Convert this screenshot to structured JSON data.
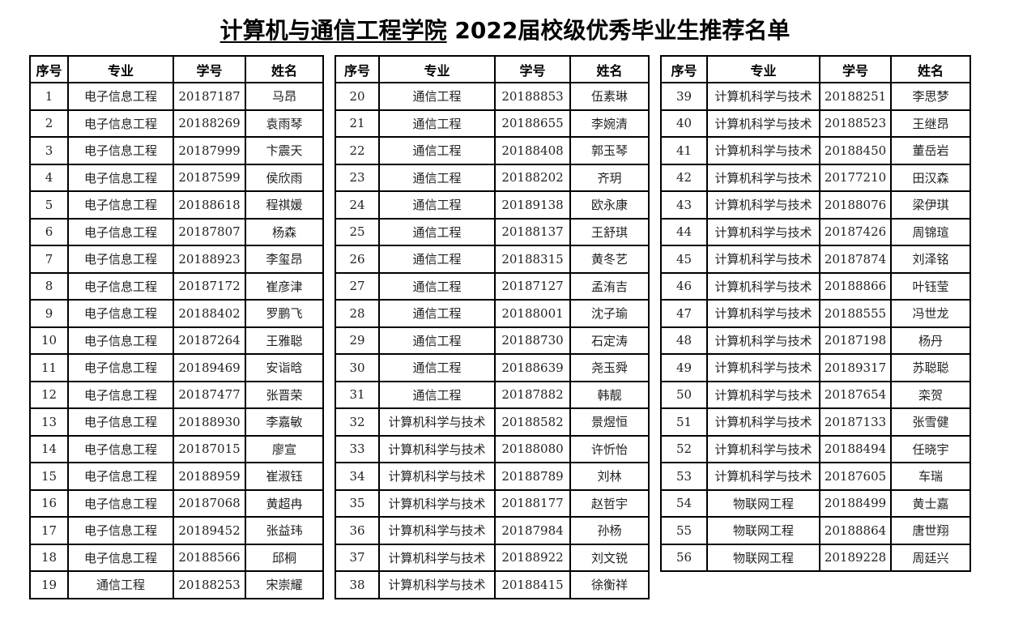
{
  "title": {
    "underlined": "计算机与通信工程学院",
    "rest": " 2022届校级优秀毕业生推荐名单"
  },
  "headers": [
    "序号",
    "专业",
    "学号",
    "姓名"
  ],
  "tables": [
    {
      "rows": [
        [
          "1",
          "电子信息工程",
          "20187187",
          "马昂"
        ],
        [
          "2",
          "电子信息工程",
          "20188269",
          "袁雨琴"
        ],
        [
          "3",
          "电子信息工程",
          "20187999",
          "卞震天"
        ],
        [
          "4",
          "电子信息工程",
          "20187599",
          "侯欣雨"
        ],
        [
          "5",
          "电子信息工程",
          "20188618",
          "程祺媛"
        ],
        [
          "6",
          "电子信息工程",
          "20187807",
          "杨森"
        ],
        [
          "7",
          "电子信息工程",
          "20188923",
          "李玺昂"
        ],
        [
          "8",
          "电子信息工程",
          "20187172",
          "崔彦津"
        ],
        [
          "9",
          "电子信息工程",
          "20188402",
          "罗鹏飞"
        ],
        [
          "10",
          "电子信息工程",
          "20187264",
          "王雅聪"
        ],
        [
          "11",
          "电子信息工程",
          "20189469",
          "安诣晗"
        ],
        [
          "12",
          "电子信息工程",
          "20187477",
          "张晋荣"
        ],
        [
          "13",
          "电子信息工程",
          "20188930",
          "李嘉敏"
        ],
        [
          "14",
          "电子信息工程",
          "20187015",
          "廖宣"
        ],
        [
          "15",
          "电子信息工程",
          "20188959",
          "崔淑钰"
        ],
        [
          "16",
          "电子信息工程",
          "20187068",
          "黄超冉"
        ],
        [
          "17",
          "电子信息工程",
          "20189452",
          "张益玮"
        ],
        [
          "18",
          "电子信息工程",
          "20188566",
          "邱桐"
        ],
        [
          "19",
          "通信工程",
          "20188253",
          "宋崇耀"
        ]
      ]
    },
    {
      "rows": [
        [
          "20",
          "通信工程",
          "20188853",
          "伍素琳"
        ],
        [
          "21",
          "通信工程",
          "20188655",
          "李婉清"
        ],
        [
          "22",
          "通信工程",
          "20188408",
          "郭玉琴"
        ],
        [
          "23",
          "通信工程",
          "20188202",
          "齐玥"
        ],
        [
          "24",
          "通信工程",
          "20189138",
          "欧永康"
        ],
        [
          "25",
          "通信工程",
          "20188137",
          "王舒琪"
        ],
        [
          "26",
          "通信工程",
          "20188315",
          "黄冬艺"
        ],
        [
          "27",
          "通信工程",
          "20187127",
          "孟洧吉"
        ],
        [
          "28",
          "通信工程",
          "20188001",
          "沈子瑜"
        ],
        [
          "29",
          "通信工程",
          "20188730",
          "石定涛"
        ],
        [
          "30",
          "通信工程",
          "20188639",
          "尧玉舜"
        ],
        [
          "31",
          "通信工程",
          "20187882",
          "韩靓"
        ],
        [
          "32",
          "计算机科学与技术",
          "20188582",
          "景煜恒"
        ],
        [
          "33",
          "计算机科学与技术",
          "20188080",
          "许忻怡"
        ],
        [
          "34",
          "计算机科学与技术",
          "20188789",
          "刘林"
        ],
        [
          "35",
          "计算机科学与技术",
          "20188177",
          "赵哲宇"
        ],
        [
          "36",
          "计算机科学与技术",
          "20187984",
          "孙杨"
        ],
        [
          "37",
          "计算机科学与技术",
          "20188922",
          "刘文锐"
        ],
        [
          "38",
          "计算机科学与技术",
          "20188415",
          "徐衡祥"
        ]
      ]
    },
    {
      "rows": [
        [
          "39",
          "计算机科学与技术",
          "20188251",
          "李思梦"
        ],
        [
          "40",
          "计算机科学与技术",
          "20188523",
          "王继昂"
        ],
        [
          "41",
          "计算机科学与技术",
          "20188450",
          "董岳岩"
        ],
        [
          "42",
          "计算机科学与技术",
          "20177210",
          "田汉森"
        ],
        [
          "43",
          "计算机科学与技术",
          "20188076",
          "梁伊琪"
        ],
        [
          "44",
          "计算机科学与技术",
          "20187426",
          "周锦瑄"
        ],
        [
          "45",
          "计算机科学与技术",
          "20187874",
          "刘泽铭"
        ],
        [
          "46",
          "计算机科学与技术",
          "20188866",
          "叶钰莹"
        ],
        [
          "47",
          "计算机科学与技术",
          "20188555",
          "冯世龙"
        ],
        [
          "48",
          "计算机科学与技术",
          "20187198",
          "杨丹"
        ],
        [
          "49",
          "计算机科学与技术",
          "20189317",
          "苏聪聪"
        ],
        [
          "50",
          "计算机科学与技术",
          "20187654",
          "栾贺"
        ],
        [
          "51",
          "计算机科学与技术",
          "20187133",
          "张雪健"
        ],
        [
          "52",
          "计算机科学与技术",
          "20188494",
          "任晓宇"
        ],
        [
          "53",
          "计算机科学与技术",
          "20187605",
          "车瑞"
        ],
        [
          "54",
          "物联网工程",
          "20188499",
          "黄士嘉"
        ],
        [
          "55",
          "物联网工程",
          "20188864",
          "唐世翔"
        ],
        [
          "56",
          "物联网工程",
          "20189228",
          "周廷兴"
        ]
      ]
    }
  ]
}
